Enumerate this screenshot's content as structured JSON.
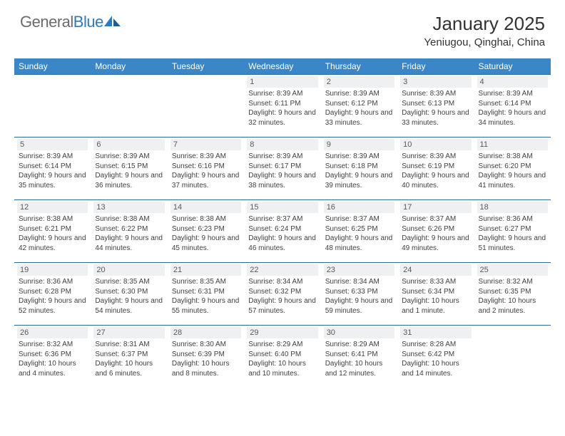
{
  "logo": {
    "word1": "General",
    "word2": "Blue"
  },
  "title": "January 2025",
  "location": "Yeniugou, Qinghai, China",
  "colors": {
    "header_bg": "#3b86c6",
    "header_text": "#ffffff",
    "row_border": "#2a6aa0",
    "daynum_bg": "#eef0f2",
    "daynum_text": "#5a5a5a",
    "body_text": "#404040",
    "logo_gray": "#6b6b6b",
    "logo_blue": "#2a7bbf"
  },
  "day_headers": [
    "Sunday",
    "Monday",
    "Tuesday",
    "Wednesday",
    "Thursday",
    "Friday",
    "Saturday"
  ],
  "weeks": [
    [
      null,
      null,
      null,
      {
        "n": "1",
        "sr": "8:39 AM",
        "ss": "6:11 PM",
        "dl": "9 hours and 32 minutes."
      },
      {
        "n": "2",
        "sr": "8:39 AM",
        "ss": "6:12 PM",
        "dl": "9 hours and 33 minutes."
      },
      {
        "n": "3",
        "sr": "8:39 AM",
        "ss": "6:13 PM",
        "dl": "9 hours and 33 minutes."
      },
      {
        "n": "4",
        "sr": "8:39 AM",
        "ss": "6:14 PM",
        "dl": "9 hours and 34 minutes."
      }
    ],
    [
      {
        "n": "5",
        "sr": "8:39 AM",
        "ss": "6:14 PM",
        "dl": "9 hours and 35 minutes."
      },
      {
        "n": "6",
        "sr": "8:39 AM",
        "ss": "6:15 PM",
        "dl": "9 hours and 36 minutes."
      },
      {
        "n": "7",
        "sr": "8:39 AM",
        "ss": "6:16 PM",
        "dl": "9 hours and 37 minutes."
      },
      {
        "n": "8",
        "sr": "8:39 AM",
        "ss": "6:17 PM",
        "dl": "9 hours and 38 minutes."
      },
      {
        "n": "9",
        "sr": "8:39 AM",
        "ss": "6:18 PM",
        "dl": "9 hours and 39 minutes."
      },
      {
        "n": "10",
        "sr": "8:39 AM",
        "ss": "6:19 PM",
        "dl": "9 hours and 40 minutes."
      },
      {
        "n": "11",
        "sr": "8:38 AM",
        "ss": "6:20 PM",
        "dl": "9 hours and 41 minutes."
      }
    ],
    [
      {
        "n": "12",
        "sr": "8:38 AM",
        "ss": "6:21 PM",
        "dl": "9 hours and 42 minutes."
      },
      {
        "n": "13",
        "sr": "8:38 AM",
        "ss": "6:22 PM",
        "dl": "9 hours and 44 minutes."
      },
      {
        "n": "14",
        "sr": "8:38 AM",
        "ss": "6:23 PM",
        "dl": "9 hours and 45 minutes."
      },
      {
        "n": "15",
        "sr": "8:37 AM",
        "ss": "6:24 PM",
        "dl": "9 hours and 46 minutes."
      },
      {
        "n": "16",
        "sr": "8:37 AM",
        "ss": "6:25 PM",
        "dl": "9 hours and 48 minutes."
      },
      {
        "n": "17",
        "sr": "8:37 AM",
        "ss": "6:26 PM",
        "dl": "9 hours and 49 minutes."
      },
      {
        "n": "18",
        "sr": "8:36 AM",
        "ss": "6:27 PM",
        "dl": "9 hours and 51 minutes."
      }
    ],
    [
      {
        "n": "19",
        "sr": "8:36 AM",
        "ss": "6:28 PM",
        "dl": "9 hours and 52 minutes."
      },
      {
        "n": "20",
        "sr": "8:35 AM",
        "ss": "6:30 PM",
        "dl": "9 hours and 54 minutes."
      },
      {
        "n": "21",
        "sr": "8:35 AM",
        "ss": "6:31 PM",
        "dl": "9 hours and 55 minutes."
      },
      {
        "n": "22",
        "sr": "8:34 AM",
        "ss": "6:32 PM",
        "dl": "9 hours and 57 minutes."
      },
      {
        "n": "23",
        "sr": "8:34 AM",
        "ss": "6:33 PM",
        "dl": "9 hours and 59 minutes."
      },
      {
        "n": "24",
        "sr": "8:33 AM",
        "ss": "6:34 PM",
        "dl": "10 hours and 1 minute."
      },
      {
        "n": "25",
        "sr": "8:32 AM",
        "ss": "6:35 PM",
        "dl": "10 hours and 2 minutes."
      }
    ],
    [
      {
        "n": "26",
        "sr": "8:32 AM",
        "ss": "6:36 PM",
        "dl": "10 hours and 4 minutes."
      },
      {
        "n": "27",
        "sr": "8:31 AM",
        "ss": "6:37 PM",
        "dl": "10 hours and 6 minutes."
      },
      {
        "n": "28",
        "sr": "8:30 AM",
        "ss": "6:39 PM",
        "dl": "10 hours and 8 minutes."
      },
      {
        "n": "29",
        "sr": "8:29 AM",
        "ss": "6:40 PM",
        "dl": "10 hours and 10 minutes."
      },
      {
        "n": "30",
        "sr": "8:29 AM",
        "ss": "6:41 PM",
        "dl": "10 hours and 12 minutes."
      },
      {
        "n": "31",
        "sr": "8:28 AM",
        "ss": "6:42 PM",
        "dl": "10 hours and 14 minutes."
      },
      null
    ]
  ],
  "labels": {
    "sunrise": "Sunrise:",
    "sunset": "Sunset:",
    "daylight": "Daylight:"
  }
}
